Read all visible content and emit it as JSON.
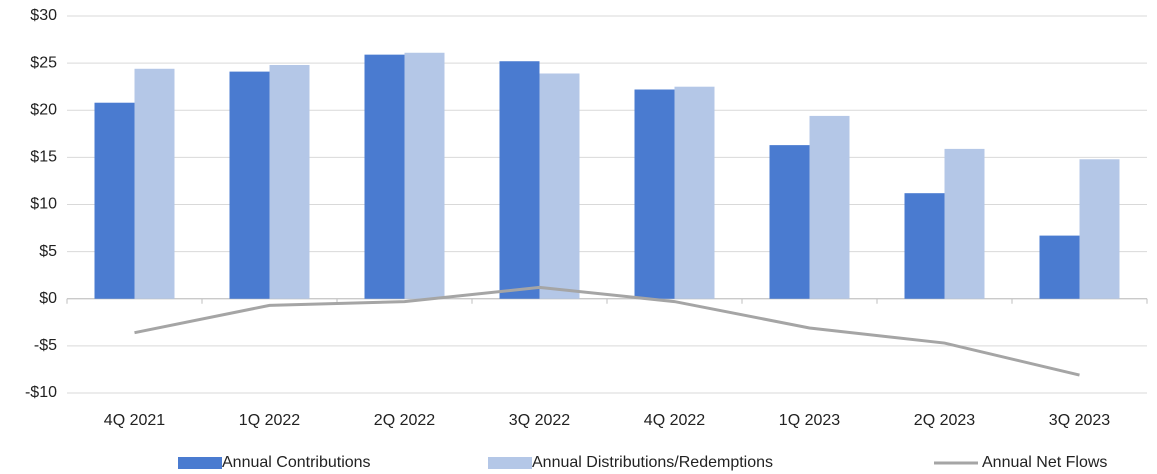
{
  "chart_data": {
    "type": "bar-line",
    "categories": [
      "4Q 2021",
      "1Q 2022",
      "2Q 2022",
      "3Q 2022",
      "4Q 2022",
      "1Q 2023",
      "2Q 2023",
      "3Q 2023"
    ],
    "series": [
      {
        "name": "Annual Contributions",
        "type": "bar",
        "color": "#4a7bd0",
        "values": [
          20.8,
          24.1,
          25.9,
          25.2,
          22.2,
          16.3,
          11.2,
          6.7
        ]
      },
      {
        "name": "Annual Distributions/Redemptions",
        "type": "bar",
        "color": "#b4c7e7",
        "values": [
          24.4,
          24.8,
          26.1,
          23.9,
          22.5,
          19.4,
          15.9,
          14.8
        ]
      },
      {
        "name": "Annual Net Flows",
        "type": "line",
        "color": "#a5a5a5",
        "values": [
          -3.6,
          -0.7,
          -0.3,
          1.2,
          -0.3,
          -3.1,
          -4.7,
          -8.1
        ]
      }
    ],
    "ylim": [
      -10,
      30
    ],
    "yticks": [
      {
        "value": -10,
        "label": "-$10"
      },
      {
        "value": -5,
        "label": "-$5"
      },
      {
        "value": 0,
        "label": "$0"
      },
      {
        "value": 5,
        "label": "$5"
      },
      {
        "value": 10,
        "label": "$10"
      },
      {
        "value": 15,
        "label": "$15"
      },
      {
        "value": 20,
        "label": "$20"
      },
      {
        "value": 25,
        "label": "$25"
      },
      {
        "value": 30,
        "label": "$30"
      }
    ],
    "grid": true,
    "legend": "bottom"
  }
}
